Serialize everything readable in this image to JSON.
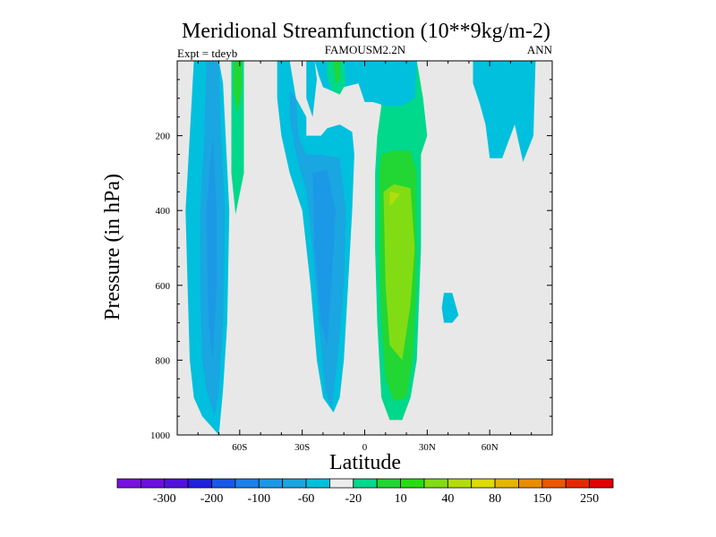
{
  "chart_data": {
    "type": "contour",
    "title": "Meridional Streamfunction (10**9kg/m-2)",
    "subtitle_left": "Expt = tdeyb",
    "subtitle_center": "FAMOUSM2.2N",
    "subtitle_right": "ANN",
    "xlabel": "Latitude",
    "ylabel": "Pressure (in hPa)",
    "x_ticks": [
      {
        "value": -60,
        "label": "60S"
      },
      {
        "value": -30,
        "label": "30S"
      },
      {
        "value": 0,
        "label": "0"
      },
      {
        "value": 30,
        "label": "30N"
      },
      {
        "value": 60,
        "label": "60N"
      }
    ],
    "y_ticks": [
      {
        "value": 200,
        "label": "200"
      },
      {
        "value": 400,
        "label": "400"
      },
      {
        "value": 600,
        "label": "600"
      },
      {
        "value": 800,
        "label": "800"
      },
      {
        "value": 1000,
        "label": "1000"
      }
    ],
    "xlim": [
      -90,
      90
    ],
    "ylim": [
      1000,
      0
    ],
    "background_color": "#e8e8e8",
    "colorbar": {
      "colors": [
        "#7a10de",
        "#6d0fe0",
        "#5312e0",
        "#2020e0",
        "#1858e8",
        "#1c80ea",
        "#1c99e6",
        "#1aa6e0",
        "#00c0dd",
        "#ececec",
        "#00d88c",
        "#22d633",
        "#28dc12",
        "#82dc14",
        "#b4dc0a",
        "#dcdc00",
        "#e6b400",
        "#ea8c00",
        "#ea5800",
        "#e62800",
        "#e20000"
      ],
      "labels": [
        {
          "after_box": 1,
          "text": "-300"
        },
        {
          "after_box": 3,
          "text": "-200"
        },
        {
          "after_box": 5,
          "text": "-100"
        },
        {
          "after_box": 7,
          "text": "-60"
        },
        {
          "after_box": 9,
          "text": "-20"
        },
        {
          "after_box": 11,
          "text": "10"
        },
        {
          "after_box": 13,
          "text": "40"
        },
        {
          "after_box": 15,
          "text": "80"
        },
        {
          "after_box": 17,
          "text": "150"
        },
        {
          "after_box": 19,
          "text": "250"
        }
      ]
    },
    "regions": [
      {
        "name": "sh-cell-outer",
        "color": "#00c0dd",
        "points": [
          [
            -82,
            0
          ],
          [
            -70,
            0
          ],
          [
            -68,
            60
          ],
          [
            -65,
            400
          ],
          [
            -66,
            700
          ],
          [
            -68,
            880
          ],
          [
            -70,
            1000
          ],
          [
            -78,
            950
          ],
          [
            -82,
            900
          ],
          [
            -84,
            800
          ],
          [
            -85,
            600
          ],
          [
            -86,
            400
          ],
          [
            -84,
            200
          ]
        ]
      },
      {
        "name": "sh-cell-inner",
        "color": "#1aa6e0",
        "points": [
          [
            -76,
            0
          ],
          [
            -70,
            0
          ],
          [
            -69,
            200
          ],
          [
            -67,
            400
          ],
          [
            -68,
            700
          ],
          [
            -70,
            880
          ],
          [
            -72,
            950
          ],
          [
            -76,
            880
          ],
          [
            -78,
            800
          ],
          [
            -79,
            600
          ],
          [
            -79,
            400
          ],
          [
            -77,
            200
          ]
        ]
      },
      {
        "name": "sh-cell-core",
        "color": "#1c99e6",
        "points": [
          [
            -73,
            200
          ],
          [
            -71,
            400
          ],
          [
            -71,
            600
          ],
          [
            -73,
            800
          ],
          [
            -75,
            700
          ],
          [
            -76,
            400
          ]
        ]
      },
      {
        "name": "polar-positive",
        "color": "#00d88c",
        "points": [
          [
            -64,
            0
          ],
          [
            -58,
            0
          ],
          [
            -58,
            150
          ],
          [
            -58,
            300
          ],
          [
            -62,
            410
          ],
          [
            -64,
            300
          ],
          [
            -64,
            150
          ]
        ]
      },
      {
        "name": "polar-positive-core",
        "color": "#22d633",
        "points": [
          [
            -63,
            0
          ],
          [
            -59,
            0
          ],
          [
            -59,
            80
          ],
          [
            -61,
            140
          ],
          [
            -63,
            80
          ]
        ]
      },
      {
        "name": "ferrel-outer",
        "color": "#00c0dd",
        "points": [
          [
            -42,
            0
          ],
          [
            -36,
            0
          ],
          [
            -33,
            100
          ],
          [
            -28,
            150
          ],
          [
            -28,
            200
          ],
          [
            -21,
            200
          ],
          [
            -18,
            180
          ],
          [
            -12,
            170
          ],
          [
            -6,
            190
          ],
          [
            -5,
            250
          ],
          [
            -6,
            400
          ],
          [
            -8,
            600
          ],
          [
            -10,
            800
          ],
          [
            -12,
            900
          ],
          [
            -15,
            940
          ],
          [
            -20,
            900
          ],
          [
            -23,
            800
          ],
          [
            -26,
            600
          ],
          [
            -30,
            400
          ],
          [
            -36,
            300
          ],
          [
            -40,
            200
          ],
          [
            -42,
            100
          ]
        ]
      },
      {
        "name": "ferrel-outer-top",
        "color": "#00c0dd",
        "points": [
          [
            -28,
            0
          ],
          [
            -24,
            0
          ],
          [
            -23,
            50
          ],
          [
            -25,
            150
          ],
          [
            -28,
            100
          ]
        ]
      },
      {
        "name": "ferrel-mid",
        "color": "#1aa6e0",
        "points": [
          [
            -36,
            80
          ],
          [
            -33,
            100
          ],
          [
            -32,
            200
          ],
          [
            -28,
            250
          ],
          [
            -22,
            250
          ],
          [
            -12,
            260
          ],
          [
            -9,
            400
          ],
          [
            -10,
            600
          ],
          [
            -13,
            800
          ],
          [
            -16,
            930
          ],
          [
            -19,
            880
          ],
          [
            -22,
            700
          ],
          [
            -25,
            500
          ],
          [
            -28,
            350
          ],
          [
            -33,
            250
          ],
          [
            -36,
            150
          ]
        ]
      },
      {
        "name": "ferrel-core",
        "color": "#1c99e6",
        "points": [
          [
            -25,
            300
          ],
          [
            -18,
            290
          ],
          [
            -14,
            400
          ],
          [
            -16,
            600
          ],
          [
            -18,
            760
          ],
          [
            -21,
            700
          ],
          [
            -24,
            500
          ]
        ]
      },
      {
        "name": "hadley-outer",
        "color": "#00d88c",
        "points": [
          [
            4,
            0
          ],
          [
            10,
            0
          ],
          [
            25,
            0
          ],
          [
            28,
            100
          ],
          [
            30,
            200
          ],
          [
            27,
            250
          ],
          [
            27,
            500
          ],
          [
            25,
            800
          ],
          [
            22,
            900
          ],
          [
            18,
            960
          ],
          [
            12,
            960
          ],
          [
            8,
            900
          ],
          [
            6,
            700
          ],
          [
            5,
            500
          ],
          [
            5,
            300
          ],
          [
            6,
            200
          ],
          [
            8,
            120
          ],
          [
            5,
            60
          ]
        ]
      },
      {
        "name": "hadley-mid",
        "color": "#22d633",
        "points": [
          [
            8,
            250
          ],
          [
            14,
            240
          ],
          [
            22,
            240
          ],
          [
            25,
            300
          ],
          [
            25,
            600
          ],
          [
            23,
            800
          ],
          [
            20,
            900
          ],
          [
            14,
            910
          ],
          [
            10,
            850
          ],
          [
            8,
            700
          ],
          [
            7,
            500
          ],
          [
            7,
            300
          ]
        ]
      },
      {
        "name": "hadley-core",
        "color": "#82dc14",
        "points": [
          [
            9,
            350
          ],
          [
            14,
            330
          ],
          [
            22,
            340
          ],
          [
            24,
            500
          ],
          [
            22,
            650
          ],
          [
            18,
            800
          ],
          [
            12,
            760
          ],
          [
            10,
            600
          ]
        ]
      },
      {
        "name": "hadley-peak",
        "color": "#b4dc0a",
        "points": [
          [
            12,
            350
          ],
          [
            17,
            355
          ],
          [
            12,
            390
          ]
        ]
      },
      {
        "name": "tropics-top-cyan",
        "color": "#00c0dd",
        "points": [
          [
            -24,
            0
          ],
          [
            0,
            0
          ],
          [
            10,
            0
          ],
          [
            20,
            0
          ],
          [
            25,
            0
          ],
          [
            24,
            100
          ],
          [
            18,
            120
          ],
          [
            10,
            120
          ],
          [
            4,
            110
          ],
          [
            0,
            110
          ],
          [
            -3,
            60
          ],
          [
            -10,
            70
          ],
          [
            -16,
            80
          ],
          [
            -20,
            70
          ],
          [
            -22,
            40
          ]
        ]
      },
      {
        "name": "tropics-top-green",
        "color": "#00d88c",
        "points": [
          [
            -18,
            0
          ],
          [
            -10,
            0
          ],
          [
            -9,
            60
          ],
          [
            -12,
            90
          ],
          [
            -16,
            80
          ],
          [
            -18,
            40
          ]
        ]
      },
      {
        "name": "tropics-top-green2",
        "color": "#22d633",
        "points": [
          [
            -15,
            0
          ],
          [
            -12,
            0
          ],
          [
            -12,
            50
          ],
          [
            -14,
            60
          ]
        ]
      },
      {
        "name": "nh-small-cyan",
        "color": "#00c0dd",
        "points": [
          [
            38,
            620
          ],
          [
            42,
            620
          ],
          [
            45,
            680
          ],
          [
            42,
            700
          ],
          [
            38,
            700
          ],
          [
            37,
            660
          ]
        ]
      },
      {
        "name": "nh-high-cyan",
        "color": "#00c0dd",
        "points": [
          [
            52,
            0
          ],
          [
            58,
            0
          ],
          [
            70,
            0
          ],
          [
            82,
            0
          ],
          [
            81,
            200
          ],
          [
            76,
            270
          ],
          [
            72,
            170
          ],
          [
            66,
            260
          ],
          [
            60,
            260
          ],
          [
            58,
            170
          ],
          [
            55,
            110
          ],
          [
            52,
            60
          ]
        ]
      }
    ]
  }
}
